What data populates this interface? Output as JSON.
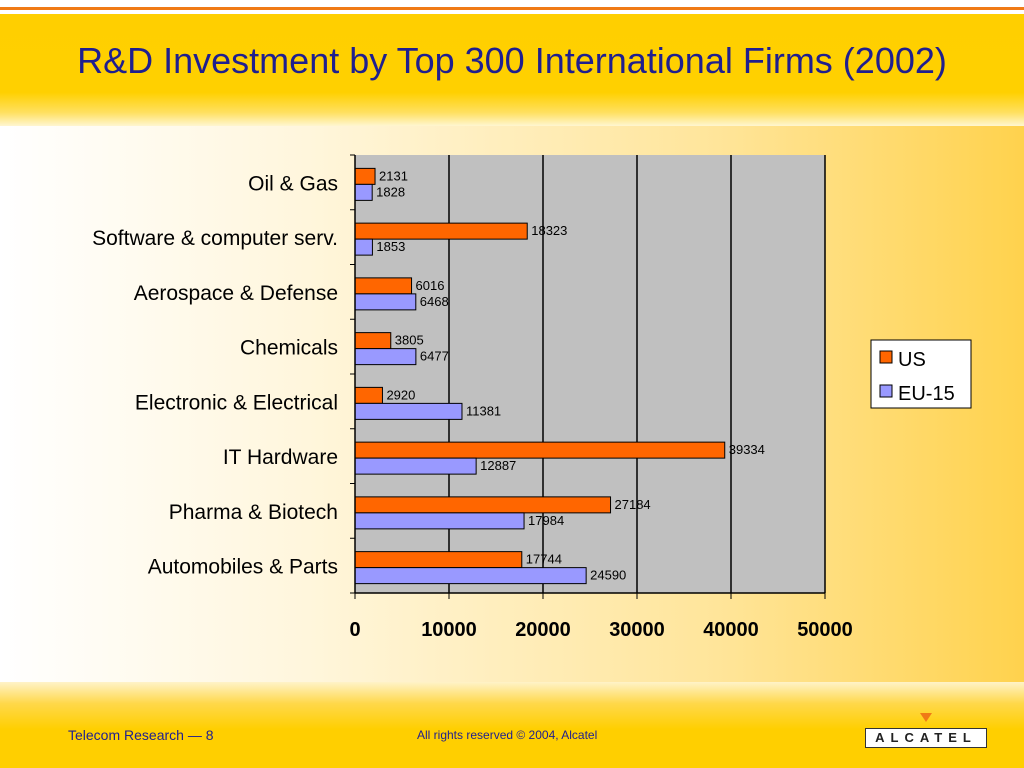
{
  "slide": {
    "title": "R&D Investment by Top 300 International Firms (2002)",
    "footer_left": "Telecom Research — 8",
    "footer_center": "All rights reserved © 2004, Alcatel",
    "logo_text": "ALCATEL"
  },
  "colors": {
    "us": "#ff6600",
    "eu": "#9999ff",
    "plot_bg": "#c0c0c0",
    "accent": "#ffcf00"
  },
  "chart_data": {
    "type": "bar",
    "orientation": "horizontal",
    "categories": [
      "Oil & Gas",
      "Software & computer serv.",
      "Aerospace & Defense",
      "Chemicals",
      "Electronic & Electrical",
      "IT Hardware",
      "Pharma & Biotech",
      "Automobiles & Parts"
    ],
    "series": [
      {
        "name": "US",
        "values": [
          2131,
          18323,
          6016,
          3805,
          2920,
          39334,
          27184,
          17744
        ]
      },
      {
        "name": "EU-15",
        "values": [
          1828,
          1853,
          6468,
          6477,
          11381,
          12887,
          17984,
          24590
        ]
      }
    ],
    "xlim": [
      0,
      50000
    ],
    "xticks": [
      0,
      10000,
      20000,
      30000,
      40000,
      50000
    ],
    "grid": true,
    "legend": "right",
    "data_labels": true
  }
}
